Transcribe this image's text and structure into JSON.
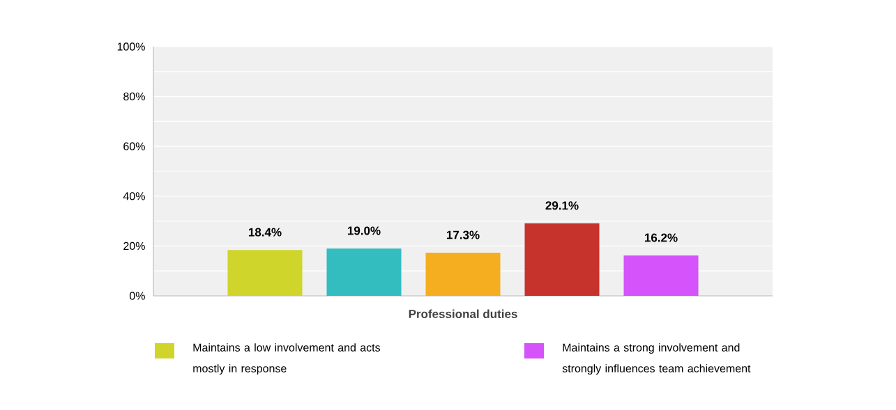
{
  "chart_data": {
    "type": "bar",
    "categories": [
      "Professional duties"
    ],
    "series": [
      {
        "name": "Maintains a low involvement and acts mostly in response",
        "color": "#cfd52a",
        "values": [
          18.4
        ],
        "value_labels": [
          "18.4%"
        ]
      },
      {
        "color": "#33bdbf",
        "values": [
          19.0
        ],
        "value_labels": [
          "19.0%"
        ]
      },
      {
        "color": "#f5ae1f",
        "values": [
          17.3
        ],
        "value_labels": [
          "17.3%"
        ]
      },
      {
        "color": "#c5332c",
        "values": [
          29.1
        ],
        "value_labels": [
          "29.1%"
        ]
      },
      {
        "name": "Maintains a strong involvement and strongly influences team achievement",
        "color": "#d453fb",
        "values": [
          16.2
        ],
        "value_labels": [
          "16.2%"
        ]
      }
    ],
    "ylim": [
      0,
      100
    ],
    "yticks": [
      {
        "value": 0,
        "label": "0%"
      },
      {
        "value": 20,
        "label": "20%"
      },
      {
        "value": 40,
        "label": "40%"
      },
      {
        "value": 60,
        "label": "60%"
      },
      {
        "value": 80,
        "label": "80%"
      },
      {
        "value": 100,
        "label": "100%"
      }
    ],
    "grid": "y",
    "legend": "bottom"
  }
}
